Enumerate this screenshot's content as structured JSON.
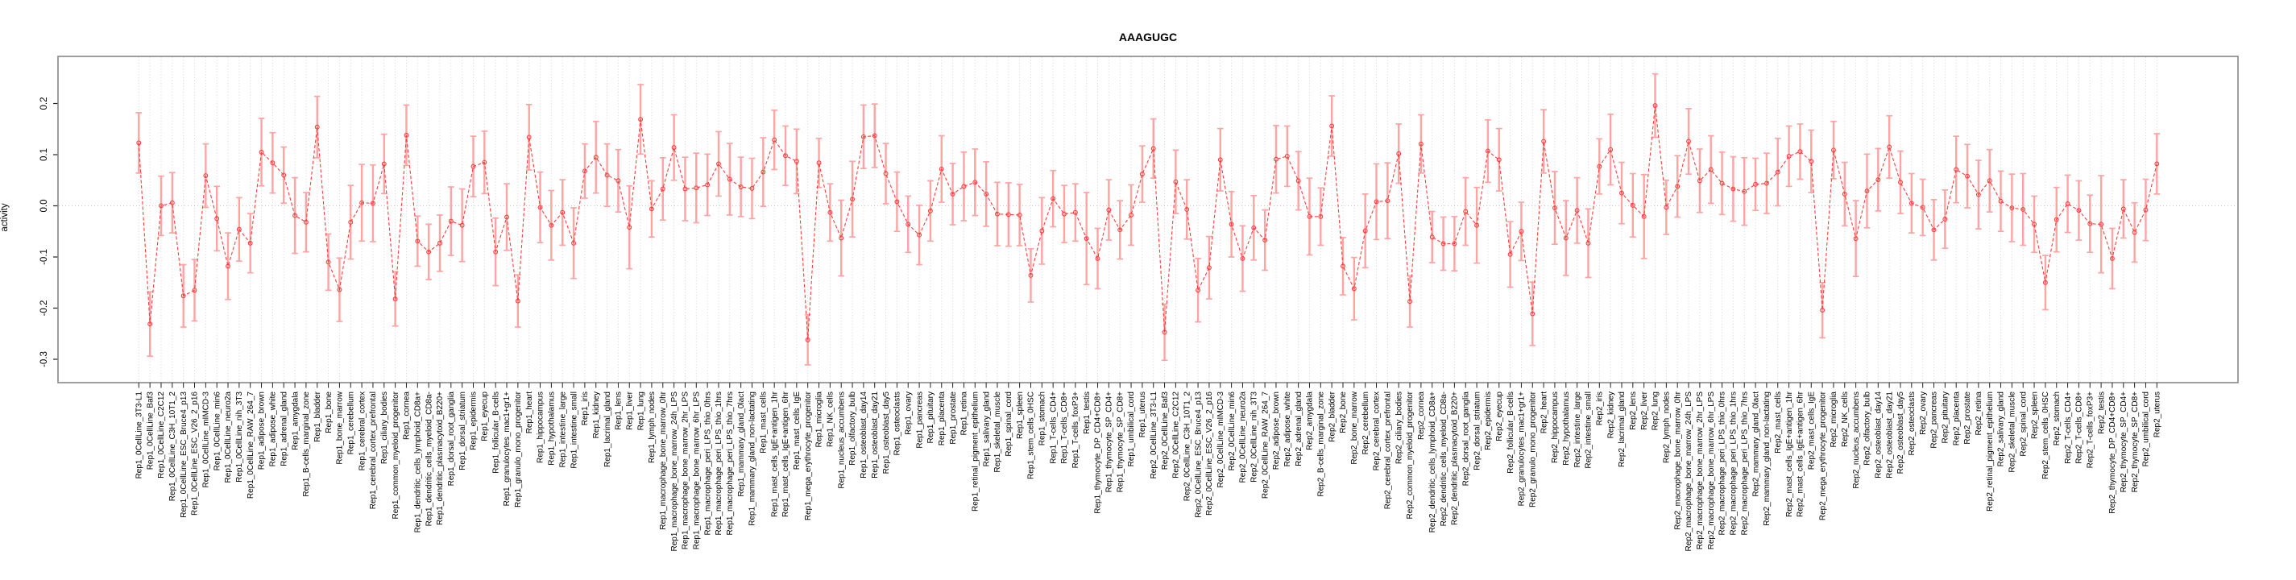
{
  "chart_data": {
    "type": "scatter",
    "subtype": "points-with-error-bars-dashed-line",
    "title": "AAAGUGC",
    "xlabel": "",
    "ylabel": "activity",
    "ylim": [
      -0.346,
      0.292
    ],
    "yticks": [
      0.2,
      0.1,
      0.0,
      -0.1,
      -0.2,
      -0.3
    ],
    "ytick_labels": [
      "0.2",
      "0.1",
      "0.0",
      "-0.1",
      "-0.2",
      "-0.3"
    ],
    "grid": "vertical-dotted-per-category-plus-zero-line",
    "legend": "none",
    "colors": {
      "point_line": "#ff3b3b",
      "error_bar": "#ffa3a3",
      "grid": "#d4d4d4",
      "zero_line": "#c6c6c6",
      "box_border": "#878787",
      "tick": "#222222",
      "text": "#000000"
    },
    "categories": [
      "Rep1_0CellLine_3T3-L1",
      "Rep1_0CellLine_Baf3",
      "Rep1_0CellLine_C2C12",
      "Rep1_0CellLine_C3H_10T1_2",
      "Rep1_0CellLine_ESC_Bruce4_p13",
      "Rep1_0CellLine_ESC_V26_2_p16",
      "Rep1_0CellLine_mIMCD-3",
      "Rep1_0CellLine_min6",
      "Rep1_0CellLine_neuro2a",
      "Rep1_0CellLine_nih_3T3",
      "Rep1_0CellLine_RAW_264_7",
      "Rep1_adipose_brown",
      "Rep1_adipose_white",
      "Rep1_adrenal_gland",
      "Rep1_amygdala",
      "Rep1_B-cells_marginal_zone",
      "Rep1_bladder",
      "Rep1_bone",
      "Rep1_bone_marrow",
      "Rep1_cerebellum",
      "Rep1_cerebral_cortex",
      "Rep1_cerebral_cortex_prefrontal",
      "Rep1_ciliary_bodies",
      "Rep1_common_myeloid_progenitor",
      "Rep1_cornea",
      "Rep1_dendritic_cells_lymphoid_CD8a+",
      "Rep1_dendritic_cells_myeloid_CD8a-",
      "Rep1_dendritic_plasmacytoid_B220+",
      "Rep1_dorsal_root_ganglia",
      "Rep1_dorsal_striatum",
      "Rep1_epidermis",
      "Rep1_eyecup",
      "Rep1_follicular_B-cells",
      "Rep1_granulocytes_mac1+gr1+",
      "Rep1_granulo_mono_progenitor",
      "Rep1_heart",
      "Rep1_hippocampus",
      "Rep1_hypothalamus",
      "Rep1_intestine_large",
      "Rep1_intestine_small",
      "Rep1_iris",
      "Rep1_kidney",
      "Rep1_lacrimal_gland",
      "Rep1_lens",
      "Rep1_liver",
      "Rep1_lung",
      "Rep1_lymph_nodes",
      "Rep1_macrophage_bone_marrow_0hr",
      "Rep1_macrophage_bone_marrow_24h_LPS",
      "Rep1_macrophage_bone_marrow_2hr_LPS",
      "Rep1_macrophage_bone_marrow_6hr_LPS",
      "Rep1_macrophage_peri_LPS_thio_0hrs",
      "Rep1_macrophage_peri_LPS_thio_1hrs",
      "Rep1_macrophage_peri_LPS_thio_7hrs",
      "Rep1_mammary_gland_0lact",
      "Rep1_mammary_gland_non-lactating",
      "Rep1_mast_cells",
      "Rep1_mast_cells_IgE+antigen_1hr",
      "Rep1_mast_cells_IgE+antigen_6hr",
      "Rep1_mast_cells_IgE",
      "Rep1_mega_erythrocyte_progenitor",
      "Rep1_microglia",
      "Rep1_NK_cells",
      "Rep1_nucleus_accumbens",
      "Rep1_olfactory_bulb",
      "Rep1_osteoblast_day14",
      "Rep1_osteoblast_day21",
      "Rep1_osteoblast_day5",
      "Rep1_osteoclasts",
      "Rep1_ovary",
      "Rep1_pancreas",
      "Rep1_pituitary",
      "Rep1_placenta",
      "Rep1_prostate",
      "Rep1_retina",
      "Rep1_retinal_pigment_epithelium",
      "Rep1_salivary_gland",
      "Rep1_skeletal_muscle",
      "Rep1_spinal_cord",
      "Rep1_spleen",
      "Rep1_stem_cells_0HSC",
      "Rep1_stomach",
      "Rep1_T-cells_CD4+",
      "Rep1_T-cells_CD8+",
      "Rep1_T-cells_foxP3+",
      "Rep1_testis",
      "Rep1_thymocyte_DP_CD4+CD8+",
      "Rep1_thymocyte_SP_CD4+",
      "Rep1_thymocyte_SP_CD8+",
      "Rep1_umbilical_cord",
      "Rep1_uterus",
      "Rep2_0CellLine_3T3-L1",
      "Rep2_0CellLine_Baf3",
      "Rep2_0CellLine_C2C12",
      "Rep2_0CellLine_C3H_10T1_2",
      "Rep2_0CellLine_ESC_Bruce4_p13",
      "Rep2_0CellLine_ESC_V26_2_p16",
      "Rep2_0CellLine_mIMCD-3",
      "Rep2_0CellLine_min6",
      "Rep2_0CellLine_neuro2a",
      "Rep2_0CellLine_nih_3T3",
      "Rep2_0CellLine_RAW_264_7",
      "Rep2_adipose_brown",
      "Rep2_adipose_white",
      "Rep2_adrenal_gland",
      "Rep2_amygdala",
      "Rep2_B-cells_marginal_zone",
      "Rep2_bladder",
      "Rep2_bone",
      "Rep2_bone_marrow",
      "Rep2_cerebellum",
      "Rep2_cerebral_cortex",
      "Rep2_cerebral_cortex_prefrontal",
      "Rep2_ciliary_bodies",
      "Rep2_common_myeloid_progenitor",
      "Rep2_cornea",
      "Rep2_dendritic_cells_lymphoid_CD8a+",
      "Rep2_dendritic_cells_myeloid_CD8a-",
      "Rep2_dendritic_plasmacytoid_B220+",
      "Rep2_dorsal_root_ganglia",
      "Rep2_dorsal_striatum",
      "Rep2_epidermis",
      "Rep2_eyecup",
      "Rep2_follicular_B-cells",
      "Rep2_granulocytes_mac1+gr1+",
      "Rep2_granulo_mono_progenitor",
      "Rep2_heart",
      "Rep2_hippocampus",
      "Rep2_hypothalamus",
      "Rep2_intestine_large",
      "Rep2_intestine_small",
      "Rep2_iris",
      "Rep2_kidney",
      "Rep2_lacrimal_gland",
      "Rep2_lens",
      "Rep2_liver",
      "Rep2_lung",
      "Rep2_lymph_nodes",
      "Rep2_macrophage_bone_marrow_0hr",
      "Rep2_macrophage_bone_marrow_24h_LPS",
      "Rep2_macrophage_bone_marrow_2hr_LPS",
      "Rep2_macrophage_bone_marrow_6hr_LPS",
      "Rep2_macrophage_peri_LPS_thio_0hrs",
      "Rep2_macrophage_peri_LPS_thio_1hrs",
      "Rep2_macrophage_peri_LPS_thio_7hrs",
      "Rep2_mammary_gland_0lact",
      "Rep2_mammary_gland_non-lactating",
      "Rep2_mast_cells",
      "Rep2_mast_cells_IgE+antigen_1hr",
      "Rep2_mast_cells_IgE+antigen_6hr",
      "Rep2_mast_cells_IgE",
      "Rep2_mega_erythrocyte_progenitor",
      "Rep2_microglia",
      "Rep2_NK_cells",
      "Rep2_nucleus_accumbens",
      "Rep2_olfactory_bulb",
      "Rep2_osteoblast_day14",
      "Rep2_osteoblast_day21",
      "Rep2_osteoblast_day5",
      "Rep2_osteoclasts",
      "Rep2_ovary",
      "Rep2_pancreas",
      "Rep2_pituitary",
      "Rep2_placenta",
      "Rep2_prostate",
      "Rep2_retina",
      "Rep2_retinal_pigment_epithelium",
      "Rep2_salivary_gland",
      "Rep2_skeletal_muscle",
      "Rep2_spinal_cord",
      "Rep2_spleen",
      "Rep2_stem_cells_0HSC",
      "Rep2_stomach",
      "Rep2_T-cells_CD4+",
      "Rep2_T-cells_CD8+",
      "Rep2_T-cells_foxP3+",
      "Rep2_testis",
      "Rep2_thymocyte_DP_CD4+CD8+",
      "Rep2_thymocyte_SP_CD4+",
      "Rep2_thymocyte_SP_CD8+",
      "Rep2_umbilical_cord",
      "Rep2_uterus"
    ],
    "values": [
      0.123,
      -0.231,
      0.0,
      0.006,
      -0.176,
      -0.165,
      0.059,
      -0.025,
      -0.118,
      -0.046,
      -0.073,
      0.105,
      0.084,
      0.06,
      -0.019,
      -0.032,
      0.154,
      -0.11,
      -0.164,
      -0.032,
      0.006,
      0.005,
      0.082,
      -0.182,
      0.138,
      -0.069,
      -0.09,
      -0.073,
      -0.03,
      -0.038,
      0.077,
      0.085,
      -0.09,
      -0.022,
      -0.186,
      0.134,
      -0.003,
      -0.038,
      -0.013,
      -0.073,
      0.068,
      0.095,
      0.06,
      0.049,
      -0.042,
      0.169,
      -0.006,
      0.033,
      0.114,
      0.033,
      0.035,
      0.041,
      0.082,
      0.052,
      0.037,
      0.034,
      0.066,
      0.129,
      0.098,
      0.087,
      -0.262,
      0.084,
      -0.013,
      -0.063,
      0.013,
      0.135,
      0.137,
      0.063,
      0.008,
      -0.036,
      -0.057,
      -0.01,
      0.072,
      0.023,
      0.038,
      0.046,
      0.023,
      -0.016,
      -0.017,
      -0.018,
      -0.136,
      -0.049,
      0.014,
      -0.016,
      -0.013,
      -0.064,
      -0.103,
      -0.008,
      -0.047,
      -0.018,
      0.062,
      0.112,
      -0.247,
      0.047,
      -0.007,
      -0.165,
      -0.121,
      0.09,
      -0.036,
      -0.103,
      -0.043,
      -0.067,
      0.091,
      0.097,
      0.049,
      -0.021,
      -0.021,
      0.156,
      -0.118,
      -0.162,
      -0.049,
      0.008,
      0.01,
      0.102,
      -0.187,
      0.121,
      -0.061,
      -0.074,
      -0.074,
      -0.011,
      -0.038,
      0.107,
      0.09,
      -0.095,
      -0.05,
      -0.211,
      0.126,
      -0.004,
      -0.063,
      -0.009,
      -0.073,
      0.077,
      0.11,
      0.025,
      0.001,
      -0.021,
      0.196,
      -0.003,
      0.038,
      0.126,
      0.049,
      0.071,
      0.044,
      0.033,
      0.028,
      0.042,
      0.044,
      0.066,
      0.097,
      0.106,
      0.087,
      -0.204,
      0.109,
      0.023,
      -0.064,
      0.029,
      0.051,
      0.115,
      0.046,
      0.005,
      -0.003,
      -0.047,
      -0.026,
      0.071,
      0.058,
      0.022,
      0.049,
      0.009,
      -0.004,
      -0.007,
      -0.036,
      -0.15,
      -0.027,
      0.004,
      -0.009,
      -0.035,
      -0.036,
      -0.103,
      -0.006,
      -0.052,
      -0.008,
      0.082
    ],
    "errors": [
      0.059,
      0.063,
      0.058,
      0.059,
      0.061,
      0.06,
      0.062,
      0.063,
      0.065,
      0.062,
      0.058,
      0.066,
      0.059,
      0.055,
      0.074,
      0.058,
      0.06,
      0.055,
      0.062,
      0.072,
      0.075,
      0.075,
      0.058,
      0.053,
      0.059,
      0.049,
      0.054,
      0.055,
      0.067,
      0.071,
      0.059,
      0.061,
      0.066,
      0.065,
      0.051,
      0.064,
      0.069,
      0.068,
      0.064,
      0.069,
      0.053,
      0.07,
      0.061,
      0.061,
      0.081,
      0.068,
      0.055,
      0.061,
      0.064,
      0.062,
      0.068,
      0.06,
      0.063,
      0.07,
      0.058,
      0.059,
      0.067,
      0.058,
      0.058,
      0.063,
      0.049,
      0.048,
      0.056,
      0.074,
      0.074,
      0.062,
      0.062,
      0.059,
      0.058,
      0.055,
      0.058,
      0.059,
      0.065,
      0.06,
      0.067,
      0.065,
      0.063,
      0.062,
      0.062,
      0.06,
      0.052,
      0.065,
      0.055,
      0.056,
      0.056,
      0.09,
      0.059,
      0.059,
      0.057,
      0.059,
      0.055,
      0.058,
      0.055,
      0.062,
      0.058,
      0.062,
      0.061,
      0.061,
      0.064,
      0.064,
      0.063,
      0.059,
      0.066,
      0.059,
      0.057,
      0.075,
      0.056,
      0.059,
      0.056,
      0.061,
      0.072,
      0.074,
      0.074,
      0.058,
      0.05,
      0.057,
      0.05,
      0.052,
      0.053,
      0.066,
      0.074,
      0.061,
      0.061,
      0.064,
      0.057,
      0.062,
      0.062,
      0.071,
      0.073,
      0.064,
      0.067,
      0.054,
      0.069,
      0.06,
      0.062,
      0.082,
      0.062,
      0.053,
      0.06,
      0.064,
      0.062,
      0.066,
      0.061,
      0.063,
      0.066,
      0.051,
      0.059,
      0.066,
      0.059,
      0.054,
      0.061,
      0.054,
      0.056,
      0.062,
      0.074,
      0.072,
      0.061,
      0.061,
      0.061,
      0.058,
      0.055,
      0.059,
      0.057,
      0.065,
      0.062,
      0.067,
      0.061,
      0.059,
      0.066,
      0.07,
      0.055,
      0.053,
      0.063,
      0.056,
      0.058,
      0.056,
      0.095,
      0.059,
      0.057,
      0.058,
      0.06,
      0.059
    ]
  }
}
